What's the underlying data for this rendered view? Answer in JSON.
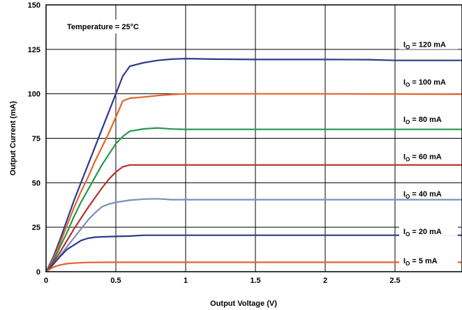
{
  "chart_data": {
    "type": "line",
    "xlabel": "Output Voltage (V)",
    "ylabel": "Output Current (mA)",
    "xlim": [
      0,
      2.98
    ],
    "ylim": [
      0,
      150
    ],
    "x_ticks": [
      "0",
      "0.5",
      "1",
      "1.5",
      "2",
      "2.5"
    ],
    "y_ticks": [
      "0",
      "25",
      "50",
      "75",
      "100",
      "125",
      "150"
    ],
    "grid": true,
    "annotations": [
      {
        "text": "Temperature = 25°C"
      }
    ],
    "series": [
      {
        "name": "I_O = 120 mA",
        "label_main": "I",
        "label_sub": "O",
        "label_rest": " = 120 mA",
        "label_y": 127,
        "color": "#2e3a8c",
        "points": [
          [
            0,
            0
          ],
          [
            0.05,
            8
          ],
          [
            0.1,
            18
          ],
          [
            0.15,
            29
          ],
          [
            0.2,
            40
          ],
          [
            0.25,
            50
          ],
          [
            0.3,
            60
          ],
          [
            0.35,
            70
          ],
          [
            0.4,
            80
          ],
          [
            0.45,
            90
          ],
          [
            0.5,
            100
          ],
          [
            0.55,
            110
          ],
          [
            0.6,
            115.5
          ],
          [
            0.7,
            117.5
          ],
          [
            0.8,
            118.8
          ],
          [
            0.9,
            119.5
          ],
          [
            1.0,
            119.8
          ],
          [
            1.2,
            119.5
          ],
          [
            1.5,
            119.3
          ],
          [
            2.0,
            119.3
          ],
          [
            2.3,
            119.2
          ],
          [
            2.5,
            118.8
          ],
          [
            2.98,
            118.8
          ]
        ]
      },
      {
        "name": "I_O = 100 mA",
        "label_main": "I",
        "label_sub": "O",
        "label_rest": " = 100 mA",
        "label_y": 106,
        "color": "#e8612c",
        "points": [
          [
            0,
            0
          ],
          [
            0.05,
            7
          ],
          [
            0.1,
            16
          ],
          [
            0.15,
            26
          ],
          [
            0.2,
            36
          ],
          [
            0.25,
            45
          ],
          [
            0.3,
            53
          ],
          [
            0.35,
            62
          ],
          [
            0.4,
            70
          ],
          [
            0.45,
            78
          ],
          [
            0.5,
            87
          ],
          [
            0.55,
            96
          ],
          [
            0.6,
            97.5
          ],
          [
            0.7,
            98.2
          ],
          [
            0.8,
            99
          ],
          [
            0.9,
            99.6
          ],
          [
            1.0,
            100
          ],
          [
            1.5,
            100
          ],
          [
            2.0,
            100
          ],
          [
            2.98,
            99.8
          ]
        ]
      },
      {
        "name": "I_O = 80 mA",
        "label_main": "I",
        "label_sub": "O",
        "label_rest": " = 80 mA",
        "label_y": 85,
        "color": "#1f9a4a",
        "points": [
          [
            0,
            0
          ],
          [
            0.05,
            6
          ],
          [
            0.1,
            14
          ],
          [
            0.15,
            22
          ],
          [
            0.2,
            31
          ],
          [
            0.25,
            39
          ],
          [
            0.3,
            46
          ],
          [
            0.35,
            53
          ],
          [
            0.4,
            60
          ],
          [
            0.45,
            66
          ],
          [
            0.5,
            72
          ],
          [
            0.55,
            76
          ],
          [
            0.6,
            79
          ],
          [
            0.7,
            80.3
          ],
          [
            0.8,
            80.8
          ],
          [
            0.9,
            80.2
          ],
          [
            1.0,
            80
          ],
          [
            2.0,
            80
          ],
          [
            2.98,
            80
          ]
        ]
      },
      {
        "name": "I_O = 60 mA",
        "label_main": "I",
        "label_sub": "O",
        "label_rest": " = 60 mA",
        "label_y": 64,
        "color": "#b5302b",
        "points": [
          [
            0,
            0
          ],
          [
            0.05,
            5
          ],
          [
            0.1,
            11
          ],
          [
            0.15,
            17.5
          ],
          [
            0.2,
            24
          ],
          [
            0.25,
            30
          ],
          [
            0.3,
            36
          ],
          [
            0.35,
            41.5
          ],
          [
            0.4,
            47
          ],
          [
            0.45,
            52
          ],
          [
            0.5,
            56
          ],
          [
            0.55,
            59
          ],
          [
            0.6,
            60
          ],
          [
            1.0,
            60
          ],
          [
            2.0,
            60
          ],
          [
            2.98,
            60
          ]
        ]
      },
      {
        "name": "I_O = 40 mA",
        "label_main": "I",
        "label_sub": "O",
        "label_rest": " = 40 mA",
        "label_y": 43,
        "color": "#7a8fbf",
        "points": [
          [
            0,
            0
          ],
          [
            0.05,
            4
          ],
          [
            0.1,
            9
          ],
          [
            0.15,
            14
          ],
          [
            0.2,
            19
          ],
          [
            0.25,
            24
          ],
          [
            0.3,
            29
          ],
          [
            0.35,
            33
          ],
          [
            0.4,
            36.5
          ],
          [
            0.45,
            38
          ],
          [
            0.5,
            39
          ],
          [
            0.6,
            40.2
          ],
          [
            0.7,
            40.8
          ],
          [
            0.8,
            41
          ],
          [
            0.9,
            40.5
          ],
          [
            1.0,
            40.5
          ],
          [
            2.0,
            40.5
          ],
          [
            2.98,
            40.5
          ]
        ]
      },
      {
        "name": "I_O = 20 mA",
        "label_main": "I",
        "label_sub": "O",
        "label_rest": " = 20 mA",
        "label_y": 22,
        "color": "#2e3a8c",
        "points": [
          [
            0,
            0
          ],
          [
            0.05,
            4
          ],
          [
            0.1,
            8.5
          ],
          [
            0.15,
            12.5
          ],
          [
            0.2,
            15
          ],
          [
            0.25,
            17.5
          ],
          [
            0.3,
            18.8
          ],
          [
            0.35,
            19.4
          ],
          [
            0.4,
            19.6
          ],
          [
            0.5,
            19.8
          ],
          [
            0.6,
            20
          ],
          [
            0.7,
            20.5
          ],
          [
            1.0,
            20.5
          ],
          [
            2.0,
            20.5
          ],
          [
            2.98,
            20.5
          ]
        ]
      },
      {
        "name": "I_O = 5 mA",
        "label_main": "I",
        "label_sub": "O",
        "label_rest": " = 5 mA",
        "label_y": 5.5,
        "color": "#e8612c",
        "points": [
          [
            0,
            0
          ],
          [
            0.05,
            2.5
          ],
          [
            0.1,
            3.8
          ],
          [
            0.15,
            4.5
          ],
          [
            0.2,
            4.8
          ],
          [
            0.3,
            5.2
          ],
          [
            0.5,
            5.3
          ],
          [
            1.0,
            5.3
          ],
          [
            2.0,
            5.3
          ],
          [
            2.98,
            5.3
          ]
        ]
      }
    ]
  }
}
